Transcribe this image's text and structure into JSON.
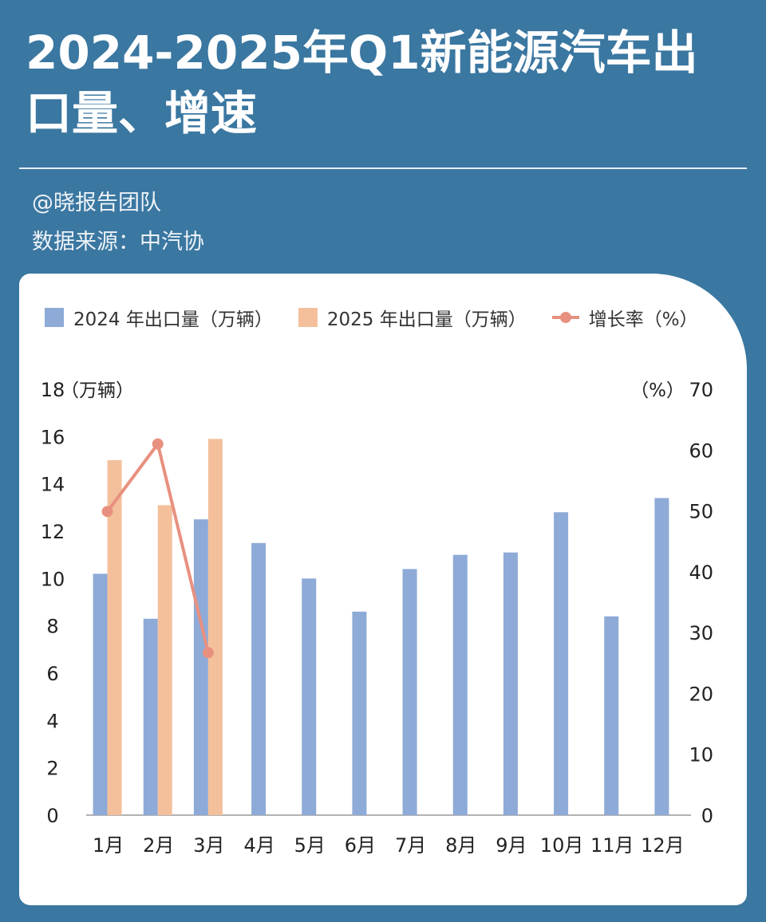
{
  "header": {
    "title": "2024-2025年Q1新能源汽车出口量、增速",
    "author": "@晓报告团队",
    "source": "数据来源：中汽协"
  },
  "colors": {
    "background": "#3a77a1",
    "bar_2024": "#8eaad7",
    "bar_2025": "#f4c09c",
    "growth_line": "#e8907f"
  },
  "chart_data": {
    "type": "bar",
    "categories": [
      "1月",
      "2月",
      "3月",
      "4月",
      "5月",
      "6月",
      "7月",
      "8月",
      "9月",
      "10月",
      "11月",
      "12月"
    ],
    "series": [
      {
        "name": "2024 年出口量（万辆）",
        "axis": "left",
        "type": "bar",
        "values": [
          10.2,
          8.3,
          12.5,
          11.5,
          10.0,
          8.6,
          10.4,
          11.0,
          11.1,
          12.8,
          8.4,
          13.4
        ]
      },
      {
        "name": "2025 年出口量（万辆）",
        "axis": "left",
        "type": "bar",
        "values": [
          15.0,
          13.1,
          15.9,
          null,
          null,
          null,
          null,
          null,
          null,
          null,
          null,
          null
        ]
      },
      {
        "name": "增长率（%）",
        "axis": "right",
        "type": "line",
        "values": [
          49.9,
          61.0,
          26.7,
          null,
          null,
          null,
          null,
          null,
          null,
          null,
          null,
          null
        ]
      }
    ],
    "left_axis": {
      "unit_label": "（万辆）",
      "ylim": [
        0,
        18
      ],
      "ticks": [
        "0",
        "2",
        "4",
        "6",
        "8",
        "10",
        "12",
        "14",
        "16",
        "18"
      ]
    },
    "right_axis": {
      "unit_label": "（%）",
      "ylim": [
        0,
        70
      ],
      "ticks": [
        "0",
        "10",
        "20",
        "30",
        "40",
        "50",
        "60",
        "70"
      ]
    },
    "grid": false,
    "legend_position": "top"
  }
}
